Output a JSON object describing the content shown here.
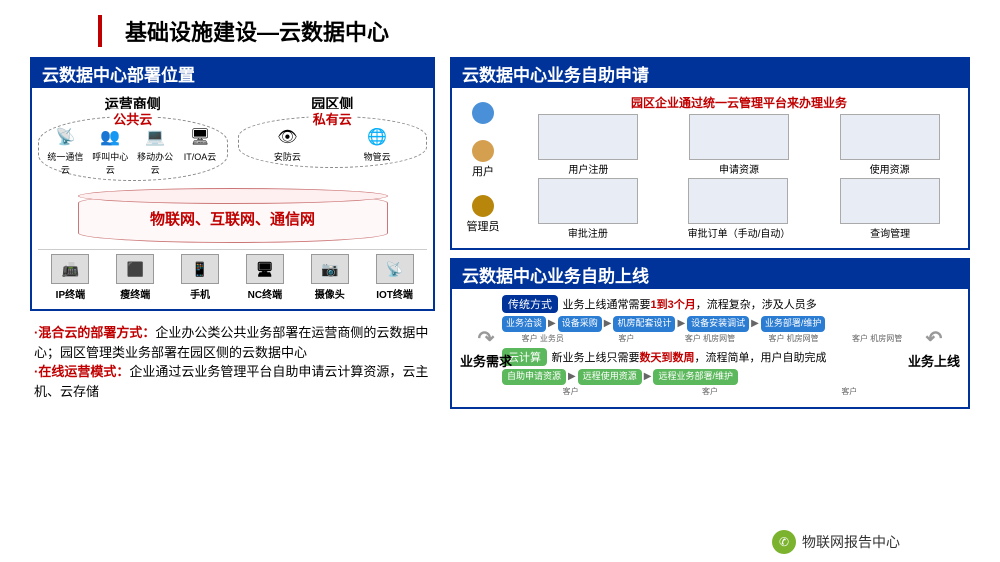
{
  "title": "基础设施建设—云数据中心",
  "left_panel": {
    "header": "云数据中心部署位置",
    "operator_side": {
      "label": "运营商侧",
      "cloud_tag": "公共云",
      "items": [
        {
          "icon": "📡",
          "label": "统一通信云"
        },
        {
          "icon": "👥",
          "label": "呼叫中心云"
        },
        {
          "icon": "💻",
          "label": "移动办公云"
        },
        {
          "icon": "🖥",
          "label": "IT/OA云"
        }
      ]
    },
    "park_side": {
      "label": "园区侧",
      "cloud_tag": "私有云",
      "items": [
        {
          "icon": "👁",
          "label": "安防云"
        },
        {
          "icon": "🌐",
          "label": "物管云"
        }
      ]
    },
    "network_label": "物联网、互联网、通信网",
    "terminals": [
      {
        "icon": "📠",
        "label": "IP终端"
      },
      {
        "icon": "⬛",
        "label": "瘦终端"
      },
      {
        "icon": "📱",
        "label": "手机"
      },
      {
        "icon": "🖥",
        "label": "NC终端"
      },
      {
        "icon": "📷",
        "label": "摄像头"
      },
      {
        "icon": "📡",
        "label": "IOT终端"
      }
    ],
    "notes": [
      {
        "label": "·混合云的部署方式：",
        "text": "企业办公类公共业务部署在运营商侧的云数据中心；园区管理类业务部署在园区侧的云数据中心"
      },
      {
        "label": "·在线运营模式：",
        "text": "企业通过云业务管理平台自助申请云计算资源，云主机、云存储"
      }
    ]
  },
  "apply_panel": {
    "header": "云数据中心业务自助申请",
    "desc": "园区企业通过统一云管理平台来办理业务",
    "roles": [
      {
        "color": "#4a90d9",
        "label": ""
      },
      {
        "color": "#d4a050",
        "label": "用户"
      },
      {
        "color": "#b8860b",
        "label": "管理员"
      }
    ],
    "user_screens": [
      "用户注册",
      "申请资源",
      "使用资源"
    ],
    "admin_screens": [
      "审批注册",
      "审批订单（手动/自动）",
      "查询管理"
    ]
  },
  "online_panel": {
    "header": "云数据中心业务自助上线",
    "left_label": "业务需求",
    "right_label": "业务上线",
    "traditional": {
      "tag": "传统方式",
      "desc_pre": "业务上线通常需要",
      "desc_red": "1到3个月",
      "desc_post": "，流程复杂，涉及人员多",
      "steps": [
        "业务洽谈",
        "设备采购",
        "机房配套设计",
        "设备安装调试",
        "业务部署/维护"
      ],
      "actors": [
        "客户 业务员",
        "客户",
        "客户 机房网管",
        "客户 机房网管",
        "客户 机房网管"
      ]
    },
    "cloud": {
      "tag": "云计算",
      "desc_pre": "新业务上线只需要",
      "desc_red": "数天到数周",
      "desc_post": "，流程简单，用户自助完成",
      "steps": [
        "自助申请资源",
        "远程使用资源",
        "远程业务部署/维护"
      ],
      "actors": [
        "客户",
        "客户",
        "客户"
      ]
    }
  },
  "footer": {
    "name": "物联网报告中心"
  },
  "colors": {
    "header_bg": "#003399",
    "accent": "#c00000",
    "blue_step": "#2b7cd3",
    "green_step": "#5cb85c"
  }
}
